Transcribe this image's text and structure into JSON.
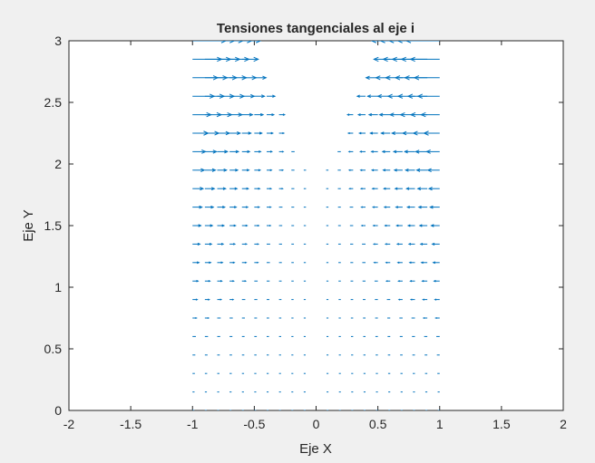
{
  "chart_data": {
    "type": "quiver",
    "title": "Tensiones tangenciales al eje i",
    "xlabel": "Eje X",
    "ylabel": "Eje Y",
    "xlim": [
      -2,
      2
    ],
    "ylim": [
      0,
      3
    ],
    "xticks": [
      "-2",
      "-1.5",
      "-1",
      "-0.5",
      "0",
      "0.5",
      "1",
      "1.5",
      "2"
    ],
    "yticks": [
      "0",
      "0.5",
      "1",
      "1.5",
      "2",
      "2.5",
      "3"
    ],
    "grid": false,
    "arrow_color": "#0072BD",
    "field": {
      "x_columns": [
        -1,
        -0.9,
        -0.8,
        -0.7,
        -0.6,
        -0.5,
        -0.4,
        -0.3,
        -0.2,
        -0.1,
        0.1,
        0.2,
        0.3,
        0.4,
        0.5,
        0.6,
        0.7,
        0.8,
        0.9,
        1
      ],
      "y_step": 0.15,
      "y_max": 3,
      "inner_region": "y < 2 + 2*(|x| - 0.1)",
      "description": "horizontal vectors pointing toward x=0, magnitude increasing with |x| and y"
    }
  }
}
